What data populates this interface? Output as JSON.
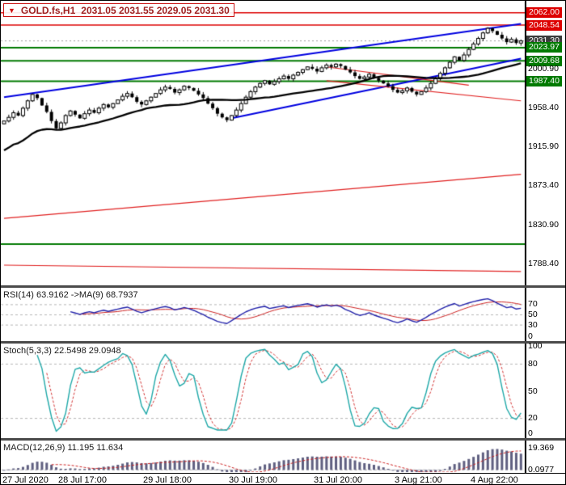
{
  "window": {
    "dropdown_arrow": "▼",
    "symbol_period": "GOLD.fs,H1",
    "ohlc_text": "2031.05 2031.55 2029.05 2031.30"
  },
  "price_axis": {
    "labels": [
      {
        "text": "2062.00",
        "value": 2062.0,
        "type": "resistance"
      },
      {
        "text": "2048.54",
        "value": 2048.54,
        "type": "resistance"
      },
      {
        "text": "2031.30",
        "value": 2031.3,
        "type": "current"
      },
      {
        "text": "2023.97",
        "value": 2023.97,
        "type": "support"
      },
      {
        "text": "2009.68",
        "value": 2009.68,
        "type": "support"
      },
      {
        "text": "2000.90",
        "value": 2000.9,
        "type": "tick"
      },
      {
        "text": "1987.40",
        "value": 1987.4,
        "type": "support"
      },
      {
        "text": "1958.40",
        "value": 1958.4,
        "type": "tick"
      },
      {
        "text": "1915.90",
        "value": 1915.9,
        "type": "tick"
      },
      {
        "text": "1873.40",
        "value": 1873.4,
        "type": "tick"
      },
      {
        "text": "1830.90",
        "value": 1830.9,
        "type": "tick"
      },
      {
        "text": "1788.40",
        "value": 1788.4,
        "type": "tick"
      }
    ]
  },
  "time_axis": {
    "labels": [
      {
        "text": "27 Jul 2020",
        "index": 0
      },
      {
        "text": "28 Jul 17:00",
        "index": 17
      },
      {
        "text": "29 Jul 18:00",
        "index": 35
      },
      {
        "text": "30 Jul 19:00",
        "index": 53
      },
      {
        "text": "31 Jul 20:00",
        "index": 71
      },
      {
        "text": "3 Aug 21:00",
        "index": 88
      },
      {
        "text": "4 Aug 22:00",
        "index": 104
      }
    ]
  },
  "panels": {
    "rsi": {
      "header": "RSI(14) 63.9162",
      "ma_header": "->MA(9) 68.7937",
      "axis_labels": [
        {
          "text": "70",
          "value": 70
        },
        {
          "text": "50",
          "value": 50
        },
        {
          "text": "30",
          "value": 30
        },
        {
          "text": "0",
          "value": 0
        }
      ]
    },
    "stoch": {
      "header": "Stoch(5,3,3) 22.5498 29.0948",
      "axis_labels": [
        {
          "text": "100",
          "value": 100
        },
        {
          "text": "80",
          "value": 80
        },
        {
          "text": "50",
          "value": 50
        },
        {
          "text": "20",
          "value": 20
        },
        {
          "text": "0",
          "value": 0
        }
      ]
    },
    "macd": {
      "header": "MACD(12,26,9) 11.195 11.634",
      "axis_labels": [
        {
          "text": "19.369",
          "value": 19.369
        },
        {
          "text": "0.0977",
          "value": 0.0977
        }
      ]
    }
  },
  "chart_data": {
    "type": "candlestick",
    "title": "GOLD.fs,H1",
    "symbol": "GOLD.fs",
    "timeframe": "H1",
    "current_ohlc": {
      "open": 2031.05,
      "high": 2031.55,
      "low": 2029.05,
      "close": 2031.3
    },
    "y_range": [
      1765,
      2075
    ],
    "first_open": 1941,
    "closes": [
      1944,
      1948,
      1953,
      1950,
      1958,
      1966,
      1973,
      1969,
      1961,
      1954,
      1944,
      1936,
      1942,
      1950,
      1955,
      1951,
      1947,
      1952,
      1956,
      1953,
      1958,
      1962,
      1959,
      1963,
      1967,
      1971,
      1974,
      1970,
      1965,
      1962,
      1966,
      1970,
      1974,
      1978,
      1981,
      1979,
      1975,
      1978,
      1982,
      1980,
      1977,
      1973,
      1969,
      1963,
      1958,
      1952,
      1948,
      1945,
      1950,
      1956,
      1963,
      1970,
      1976,
      1981,
      1985,
      1988,
      1984,
      1987,
      1990,
      1993,
      1990,
      1994,
      1997,
      2000,
      2003,
      2001,
      1998,
      2002,
      2005,
      2003,
      2006,
      2004,
      2000,
      1997,
      1993,
      1990,
      1992,
      1995,
      1991,
      1988,
      1985,
      1982,
      1978,
      1975,
      1977,
      1980,
      1976,
      1973,
      1976,
      1980,
      1985,
      1990,
      1996,
      2002,
      2008,
      2014,
      2010,
      2016,
      2022,
      2028,
      2034,
      2040,
      2045,
      2042,
      2038,
      2034,
      2030,
      2033,
      2029,
      2031.3
    ],
    "moving_average": {
      "period": 30,
      "left_anchor": 1912
    },
    "levels": [
      {
        "value": 2062.0,
        "type": "resistance",
        "color": "#dd0000"
      },
      {
        "value": 2048.54,
        "type": "resistance",
        "color": "#dd0000"
      },
      {
        "value": 2023.97,
        "type": "support",
        "color": "#007a00"
      },
      {
        "value": 2009.68,
        "type": "support",
        "color": "#007a00"
      },
      {
        "value": 1987.4,
        "type": "support",
        "color": "#007a00"
      },
      {
        "value": 1810.0,
        "type": "support",
        "color": "#007a00"
      }
    ],
    "trendlines": [
      {
        "from_index": 0,
        "from_value": 1970,
        "to_index": 109,
        "to_value": 2050,
        "color": "#0000e0",
        "width": 2
      },
      {
        "from_index": 48,
        "from_value": 1947,
        "to_index": 109,
        "to_value": 2012,
        "color": "#0000e0",
        "width": 2
      },
      {
        "from_index": 68,
        "from_value": 2003,
        "to_index": 98,
        "to_value": 1983,
        "color": "#e02020",
        "width": 1.2
      },
      {
        "from_index": 68,
        "from_value": 1988,
        "to_index": 109,
        "to_value": 1966,
        "color": "#e02020",
        "width": 1.2
      },
      {
        "from_index": 0,
        "from_value": 1838,
        "to_index": 109,
        "to_value": 1886,
        "color": "#e02020",
        "width": 1.2
      },
      {
        "from_index": 0,
        "from_value": 1787,
        "to_index": 109,
        "to_value": 1780,
        "color": "#e02020",
        "width": 1.2
      }
    ],
    "indicators": {
      "rsi": {
        "period": 14,
        "value": 63.9162,
        "ma_period": 9,
        "ma_value": 68.7937,
        "range": [
          0,
          100
        ],
        "levels": [
          30,
          50,
          70
        ]
      },
      "stochastic": {
        "params": "5,3,3",
        "k": 22.5498,
        "d": 29.0948,
        "range": [
          0,
          100
        ],
        "levels": [
          20,
          80
        ]
      },
      "macd": {
        "params": "12,26,9",
        "macd": 11.195,
        "signal": 11.634,
        "scale_top": 19.369,
        "scale_bottom": 0.0977
      }
    },
    "colors": {
      "up_candle": "#ffffff",
      "down_candle": "#000000",
      "candle_border": "#000000",
      "ma_line": "#000000",
      "bid_line": "#999999",
      "rsi_line": "#2222aa",
      "rsi_ma": "#cc2222",
      "stoch_k": "#1fa8a8",
      "stoch_d": "#d23333",
      "macd_hist": "#5f5f80",
      "macd_signal": "#cc2222",
      "level_dash": "#b5b5b5"
    }
  }
}
